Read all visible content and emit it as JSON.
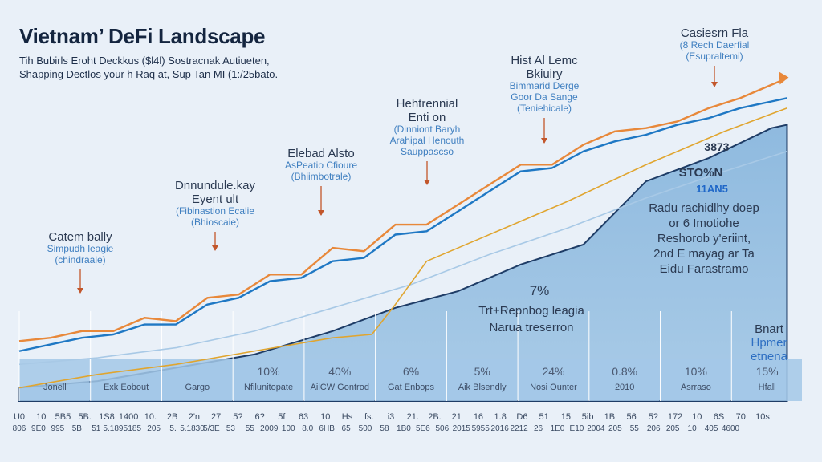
{
  "header": {
    "title": "Vietnam’ DeFi Landscape",
    "subtitle_line1": "Tih Bubirls Eroht Deckkus ($l4l) Sostracnak Autiueten,",
    "subtitle_line2": "Shapping Dectlos your h Raq at, Sup Tan MI (1:/25bato."
  },
  "chart_data": {
    "type": "area",
    "title": "Vietnam’ DeFi Landscape",
    "x_range": [
      0,
      100
    ],
    "y_range": [
      0,
      100
    ],
    "series": [
      {
        "name": "Orange trend",
        "color": "#e8883a",
        "x": [
          0,
          4,
          8,
          12,
          16,
          20,
          24,
          28,
          32,
          36,
          40,
          44,
          48,
          52,
          56,
          60,
          64,
          68,
          72,
          76,
          80,
          84,
          88,
          92,
          96,
          98
        ],
        "y": [
          18,
          19,
          21,
          21,
          25,
          24,
          31,
          32,
          38,
          38,
          46,
          45,
          53,
          53,
          59,
          65,
          71,
          71,
          77,
          81,
          82,
          84,
          88,
          91,
          95,
          97
        ]
      },
      {
        "name": "Blue trend",
        "color": "#1f78c4",
        "x": [
          0,
          4,
          8,
          12,
          16,
          20,
          24,
          28,
          32,
          36,
          40,
          44,
          48,
          52,
          56,
          60,
          64,
          68,
          72,
          76,
          80,
          84,
          88,
          92,
          96,
          98
        ],
        "y": [
          15,
          17,
          19,
          20,
          23,
          23,
          29,
          31,
          36,
          37,
          42,
          43,
          50,
          51,
          57,
          63,
          69,
          70,
          75,
          78,
          80,
          83,
          85,
          88,
          90,
          91
        ]
      },
      {
        "name": "Light blue line",
        "color": "#a8c9e6",
        "x": [
          0,
          10,
          20,
          30,
          40,
          50,
          60,
          70,
          80,
          90,
          98
        ],
        "y": [
          11,
          13,
          16,
          21,
          28,
          35,
          44,
          52,
          61,
          69,
          75
        ]
      },
      {
        "name": "Gold line",
        "color": "#e0a52f",
        "x": [
          0,
          10,
          20,
          30,
          40,
          45,
          48,
          52,
          58,
          64,
          70,
          80,
          90,
          98
        ],
        "y": [
          4,
          8,
          11,
          15,
          19,
          20,
          29,
          42,
          48,
          54,
          60,
          71,
          81,
          88
        ]
      },
      {
        "name": "Filled area",
        "color": "#8fbadf",
        "x": [
          0,
          10,
          20,
          30,
          40,
          48,
          56,
          64,
          72,
          80,
          88,
          96,
          98
        ],
        "y": [
          4,
          6,
          10,
          14,
          21,
          28,
          33,
          41,
          47,
          66,
          73,
          82,
          83
        ]
      }
    ],
    "annotations": [
      {
        "title": "Catem bally",
        "sub1": "Simpudh leagie",
        "sub2": "(chindraale)"
      },
      {
        "title": "Dnnundule.kay",
        "title2": "Eyent ult",
        "sub1": "(Fibinastion Ecalie",
        "sub2": "(Bhioscaie)"
      },
      {
        "title": "Elebad Alsto",
        "sub1": "AsPeatio Cfioure",
        "sub2": "(Bhiimbotrale)"
      },
      {
        "title": "Hehtrennial",
        "title2": "Enti on",
        "sub1": "(Dinniont Baryh",
        "sub2": "Arahipal Henouth",
        "sub3": "Sauppascso"
      },
      {
        "title": "Hist Al Lemc",
        "title2": "Bkiuiry",
        "sub1": "Bimmarid Derge",
        "sub2": "Goor Da Sange",
        "sub3": "(Teniehicale)"
      },
      {
        "title": "Casiesrn Fla",
        "sub1": "(8 Rech Daerfial",
        "sub2": "(Esupraltemi)"
      }
    ],
    "right_panel": {
      "val1": "3873",
      "val2": "STO%N",
      "val3": "11AN5",
      "lines": [
        "Radu rachidlhy doep",
        "or 6 Imotiohe",
        "Reshorob y'eriint,",
        "2nd E mayag ar Ta",
        "Eidu Farastramo"
      ]
    },
    "center_text": {
      "pct": "7%",
      "line1": "Trt+Repnbog leagia",
      "line2": "Narua treserron"
    },
    "corner_text": [
      "Bnart",
      "Hpmer",
      "etnena"
    ],
    "bottom_bars": [
      {
        "pct": "",
        "label": "Jonell"
      },
      {
        "pct": "",
        "label": "Exk Eobout"
      },
      {
        "pct": "",
        "label": "Gargo"
      },
      {
        "pct": "10%",
        "label": "Nfilunitopate"
      },
      {
        "pct": "40%",
        "label": "AilCW Gontrod"
      },
      {
        "pct": "6%",
        "label": "Gat Enbops"
      },
      {
        "pct": "5%",
        "label": "Aik Blsendly"
      },
      {
        "pct": "24%",
        "label": "Nosi Ounter"
      },
      {
        "pct": "0.8%",
        "label": "2010"
      },
      {
        "pct": "10%",
        "label": "Asrraso"
      },
      {
        "pct": "15%",
        "label": "Hfall"
      }
    ],
    "x_ticks_top": [
      "U0",
      "10",
      "5B5",
      "5B.",
      "1S8",
      "1400",
      "10.",
      "2B",
      "2'n",
      "27",
      "5?",
      "6?",
      "5f",
      "63",
      "10",
      "Hs",
      "fs.",
      "i3",
      "21.",
      "2B.",
      "21",
      "16",
      "1.8",
      "D6",
      "51",
      "15",
      "5ib",
      "1B",
      "56",
      "5?",
      "172",
      "10",
      "6S",
      "70",
      "10s"
    ],
    "x_ticks_bottom": [
      "806",
      "9E0",
      "995",
      "5B",
      "51",
      "5.1895",
      "185",
      "205",
      "5.",
      "5.1830",
      "5/3E",
      "53",
      "55",
      "2009",
      "100",
      "8.0",
      "6HB",
      "65",
      "500",
      "58",
      "1B0",
      "5E6",
      "506",
      "2015",
      "5955",
      "2016",
      "2212",
      "26",
      "1E0",
      "E10",
      "2004",
      "205",
      "55",
      "206",
      "205",
      "10",
      "405",
      "4600"
    ]
  }
}
